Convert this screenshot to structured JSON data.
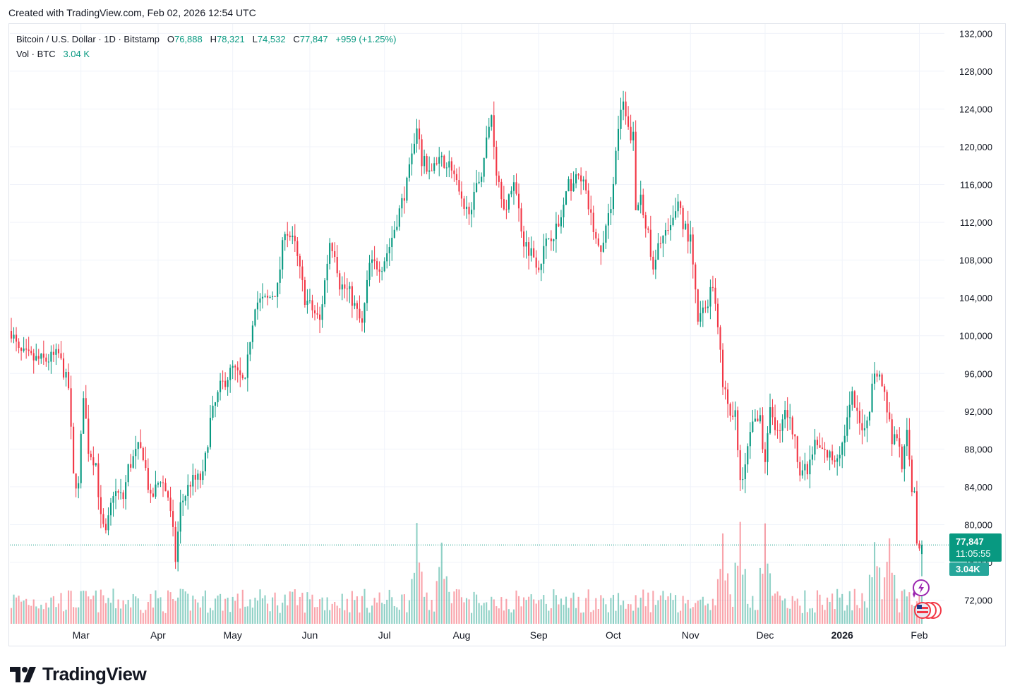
{
  "header": {
    "created_with": "Created with TradingView.com, Feb 02, 2026 12:54 UTC"
  },
  "legend": {
    "symbol": "Bitcoin / U.S. Dollar · 1D · Bitstamp",
    "o_label": "O",
    "o_value": "76,888",
    "h_label": "H",
    "h_value": "78,321",
    "l_label": "L",
    "l_value": "74,532",
    "c_label": "C",
    "c_value": "77,847",
    "change": "+959 (+1.25%)",
    "vol_label": "Vol · BTC",
    "vol_value": "3.04 K"
  },
  "price_tag": {
    "price": "77,847",
    "countdown": "11:05:55",
    "volume": "3.04K"
  },
  "brand": {
    "name": "TradingView"
  },
  "colors": {
    "up": "#089981",
    "down": "#f23645",
    "grid": "#f0f3fa",
    "text": "#131722"
  },
  "icons": [
    "lightning-icon",
    "us-flag-icon",
    "tradingview-logo-icon"
  ],
  "chart_data": {
    "type": "candlestick",
    "title": "Bitcoin / U.S. Dollar · 1D · Bitstamp",
    "ylim": [
      69500,
      133000
    ],
    "y_ticks": [
      72000,
      76000,
      80000,
      84000,
      88000,
      92000,
      96000,
      100000,
      104000,
      108000,
      112000,
      116000,
      120000,
      124000,
      128000,
      132000
    ],
    "y_tick_labels": [
      "72,000",
      "76,000",
      "80,000",
      "84,000",
      "88,000",
      "92,000",
      "96,000",
      "100,000",
      "104,000",
      "108,000",
      "112,000",
      "116,000",
      "120,000",
      "124,000",
      "128,000",
      "132,000"
    ],
    "x_tick_labels": [
      {
        "date": "2025-03-01",
        "label": "Mar",
        "bold": false
      },
      {
        "date": "2025-04-01",
        "label": "Apr",
        "bold": false
      },
      {
        "date": "2025-05-01",
        "label": "May",
        "bold": false
      },
      {
        "date": "2025-06-01",
        "label": "Jun",
        "bold": false
      },
      {
        "date": "2025-07-01",
        "label": "Jul",
        "bold": false
      },
      {
        "date": "2025-08-01",
        "label": "Aug",
        "bold": false
      },
      {
        "date": "2025-09-01",
        "label": "Sep",
        "bold": false
      },
      {
        "date": "2025-10-01",
        "label": "Oct",
        "bold": false
      },
      {
        "date": "2025-11-01",
        "label": "Nov",
        "bold": false
      },
      {
        "date": "2025-12-01",
        "label": "Dec",
        "bold": false
      },
      {
        "date": "2026-01-01",
        "label": "2026",
        "bold": true
      },
      {
        "date": "2026-02-01",
        "label": "Feb",
        "bold": false
      }
    ],
    "start_date": "2025-02-01",
    "end_date": "2026-02-02",
    "close_path": [
      [
        "2025-02-01",
        100500
      ],
      [
        "2025-02-04",
        98200
      ],
      [
        "2025-02-10",
        97500
      ],
      [
        "2025-02-15",
        97400
      ],
      [
        "2025-02-20",
        98000
      ],
      [
        "2025-02-24",
        94500
      ],
      [
        "2025-02-26",
        85000
      ],
      [
        "2025-02-28",
        84000
      ],
      [
        "2025-03-02",
        94000
      ],
      [
        "2025-03-04",
        88000
      ],
      [
        "2025-03-07",
        86500
      ],
      [
        "2025-03-09",
        80500
      ],
      [
        "2025-03-11",
        78800
      ],
      [
        "2025-03-14",
        83500
      ],
      [
        "2025-03-18",
        82800
      ],
      [
        "2025-03-20",
        86000
      ],
      [
        "2025-03-24",
        88000
      ],
      [
        "2025-03-26",
        87500
      ],
      [
        "2025-03-29",
        82500
      ],
      [
        "2025-04-02",
        85000
      ],
      [
        "2025-04-05",
        83000
      ],
      [
        "2025-04-07",
        79000
      ],
      [
        "2025-04-08",
        76300
      ],
      [
        "2025-04-10",
        82000
      ],
      [
        "2025-04-14",
        84500
      ],
      [
        "2025-04-19",
        85000
      ],
      [
        "2025-04-22",
        91000
      ],
      [
        "2025-04-26",
        94500
      ],
      [
        "2025-05-01",
        96500
      ],
      [
        "2025-05-06",
        94800
      ],
      [
        "2025-05-08",
        99800
      ],
      [
        "2025-05-10",
        103500
      ],
      [
        "2025-05-15",
        103800
      ],
      [
        "2025-05-19",
        105000
      ],
      [
        "2025-05-22",
        111500
      ],
      [
        "2025-05-26",
        109500
      ],
      [
        "2025-05-30",
        104000
      ],
      [
        "2025-06-05",
        101500
      ],
      [
        "2025-06-09",
        110000
      ],
      [
        "2025-06-11",
        109000
      ],
      [
        "2025-06-13",
        105500
      ],
      [
        "2025-06-17",
        104500
      ],
      [
        "2025-06-22",
        101000
      ],
      [
        "2025-06-25",
        107500
      ],
      [
        "2025-06-30",
        107500
      ],
      [
        "2025-07-03",
        109500
      ],
      [
        "2025-07-10",
        116000
      ],
      [
        "2025-07-14",
        121500
      ],
      [
        "2025-07-16",
        118500
      ],
      [
        "2025-07-20",
        117500
      ],
      [
        "2025-07-24",
        118500
      ],
      [
        "2025-07-28",
        118000
      ],
      [
        "2025-08-02",
        112800
      ],
      [
        "2025-08-06",
        114500
      ],
      [
        "2025-08-09",
        117500
      ],
      [
        "2025-08-13",
        123500
      ],
      [
        "2025-08-15",
        117500
      ],
      [
        "2025-08-19",
        113000
      ],
      [
        "2025-08-22",
        116800
      ],
      [
        "2025-08-24",
        113200
      ],
      [
        "2025-08-26",
        110000
      ],
      [
        "2025-08-30",
        108500
      ],
      [
        "2025-09-01",
        107500
      ],
      [
        "2025-09-05",
        110500
      ],
      [
        "2025-09-09",
        111500
      ],
      [
        "2025-09-13",
        115800
      ],
      [
        "2025-09-16",
        116500
      ],
      [
        "2025-09-18",
        117000
      ],
      [
        "2025-09-22",
        112500
      ],
      [
        "2025-09-25",
        109000
      ],
      [
        "2025-09-27",
        109600
      ],
      [
        "2025-09-30",
        114000
      ],
      [
        "2025-10-03",
        122000
      ],
      [
        "2025-10-05",
        124500
      ],
      [
        "2025-10-07",
        121500
      ],
      [
        "2025-10-09",
        121000
      ],
      [
        "2025-10-10",
        113000
      ],
      [
        "2025-10-12",
        115000
      ],
      [
        "2025-10-15",
        110500
      ],
      [
        "2025-10-17",
        106500
      ],
      [
        "2025-10-20",
        110500
      ],
      [
        "2025-10-24",
        111000
      ],
      [
        "2025-10-27",
        114500
      ],
      [
        "2025-10-29",
        112000
      ],
      [
        "2025-11-01",
        110000
      ],
      [
        "2025-11-04",
        101500
      ],
      [
        "2025-11-07",
        103000
      ],
      [
        "2025-11-10",
        105500
      ],
      [
        "2025-11-12",
        101500
      ],
      [
        "2025-11-14",
        94500
      ],
      [
        "2025-11-17",
        92000
      ],
      [
        "2025-11-19",
        91500
      ],
      [
        "2025-11-21",
        84500
      ],
      [
        "2025-11-23",
        86500
      ],
      [
        "2025-11-26",
        90500
      ],
      [
        "2025-11-29",
        91000
      ],
      [
        "2025-12-01",
        86500
      ],
      [
        "2025-12-03",
        93000
      ],
      [
        "2025-12-06",
        89500
      ],
      [
        "2025-12-09",
        92500
      ],
      [
        "2025-12-12",
        90000
      ],
      [
        "2025-12-15",
        86000
      ],
      [
        "2025-12-18",
        85500
      ],
      [
        "2025-12-21",
        88500
      ],
      [
        "2025-12-25",
        87500
      ],
      [
        "2025-12-29",
        87000
      ],
      [
        "2026-01-01",
        88500
      ],
      [
        "2026-01-05",
        93500
      ],
      [
        "2026-01-08",
        90500
      ],
      [
        "2026-01-11",
        90800
      ],
      [
        "2026-01-14",
        96500
      ],
      [
        "2026-01-17",
        95300
      ],
      [
        "2026-01-19",
        92500
      ],
      [
        "2026-01-21",
        89000
      ],
      [
        "2026-01-23",
        89500
      ],
      [
        "2026-01-25",
        86500
      ],
      [
        "2026-01-27",
        89300
      ],
      [
        "2026-01-29",
        84000
      ],
      [
        "2026-01-30",
        83500
      ],
      [
        "2026-01-31",
        78500
      ],
      [
        "2026-02-01",
        76888
      ],
      [
        "2026-02-02",
        77847
      ]
    ],
    "last_candle": {
      "date": "2026-02-02",
      "open": 76888,
      "high": 78321,
      "low": 74532,
      "close": 77847,
      "volume": "3.04K"
    },
    "volume_peaks": [
      [
        "2025-07-14",
        "high"
      ],
      [
        "2025-07-24",
        "high"
      ],
      [
        "2025-11-14",
        "high"
      ],
      [
        "2025-11-21",
        "high"
      ],
      [
        "2025-12-01",
        "high"
      ],
      [
        "2026-01-14",
        "high"
      ],
      [
        "2026-01-20",
        "high"
      ]
    ],
    "current_price_line": 77847
  }
}
